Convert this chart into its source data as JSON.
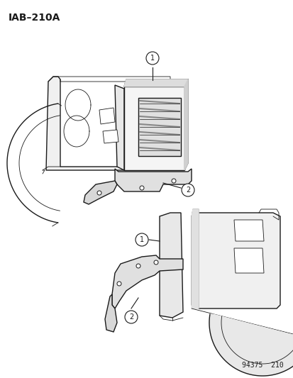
{
  "title_code": "IAB–210A",
  "part_number": "94375  210",
  "bg_color": "#ffffff",
  "line_color": "#1a1a1a",
  "fig_width": 4.14,
  "fig_height": 5.33,
  "dpi": 100
}
